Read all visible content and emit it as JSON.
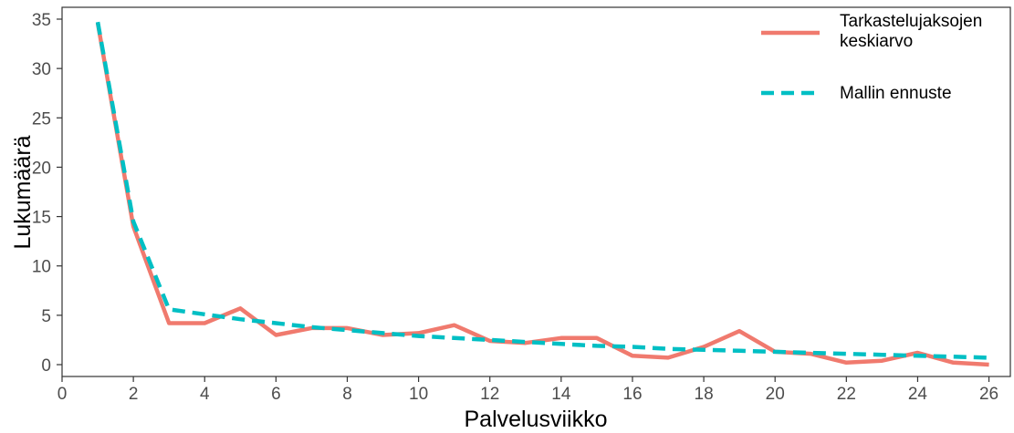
{
  "chart_data": {
    "type": "line",
    "title": "",
    "xlabel": "Palvelusviikko",
    "ylabel": "Lukumäärä",
    "xlim": [
      0,
      26.6
    ],
    "ylim": [
      -1.2,
      36.2
    ],
    "xticks": [
      0,
      2,
      4,
      6,
      8,
      10,
      12,
      14,
      16,
      18,
      20,
      22,
      24,
      26
    ],
    "yticks": [
      0,
      5,
      10,
      15,
      20,
      25,
      30,
      35
    ],
    "grid": false,
    "legend_position": "top-right",
    "x": [
      1,
      2,
      3,
      4,
      5,
      6,
      7,
      8,
      9,
      10,
      11,
      12,
      13,
      14,
      15,
      16,
      17,
      18,
      19,
      20,
      21,
      22,
      23,
      24,
      25,
      26
    ],
    "series": [
      {
        "name": "Tarkastelujaksojen keskiarvo",
        "legend_lines": [
          "Tarkastelujaksojen",
          "keskiarvo"
        ],
        "style": "solid",
        "color": "#F07A6E",
        "values": [
          34.6,
          14.0,
          4.2,
          4.2,
          5.7,
          3.0,
          3.7,
          3.7,
          3.0,
          3.2,
          4.0,
          2.4,
          2.2,
          2.7,
          2.7,
          0.9,
          0.7,
          1.8,
          3.4,
          1.3,
          1.1,
          0.2,
          0.4,
          1.2,
          0.2,
          0.0
        ]
      },
      {
        "name": "Mallin ennuste",
        "legend_lines": [
          "Mallin ennuste"
        ],
        "style": "dashed",
        "color": "#00BFC4",
        "values": [
          34.7,
          14.5,
          5.6,
          5.1,
          4.6,
          4.2,
          3.8,
          3.5,
          3.2,
          2.9,
          2.7,
          2.5,
          2.3,
          2.1,
          1.9,
          1.8,
          1.6,
          1.5,
          1.4,
          1.3,
          1.2,
          1.1,
          1.0,
          0.9,
          0.8,
          0.7
        ]
      }
    ]
  }
}
